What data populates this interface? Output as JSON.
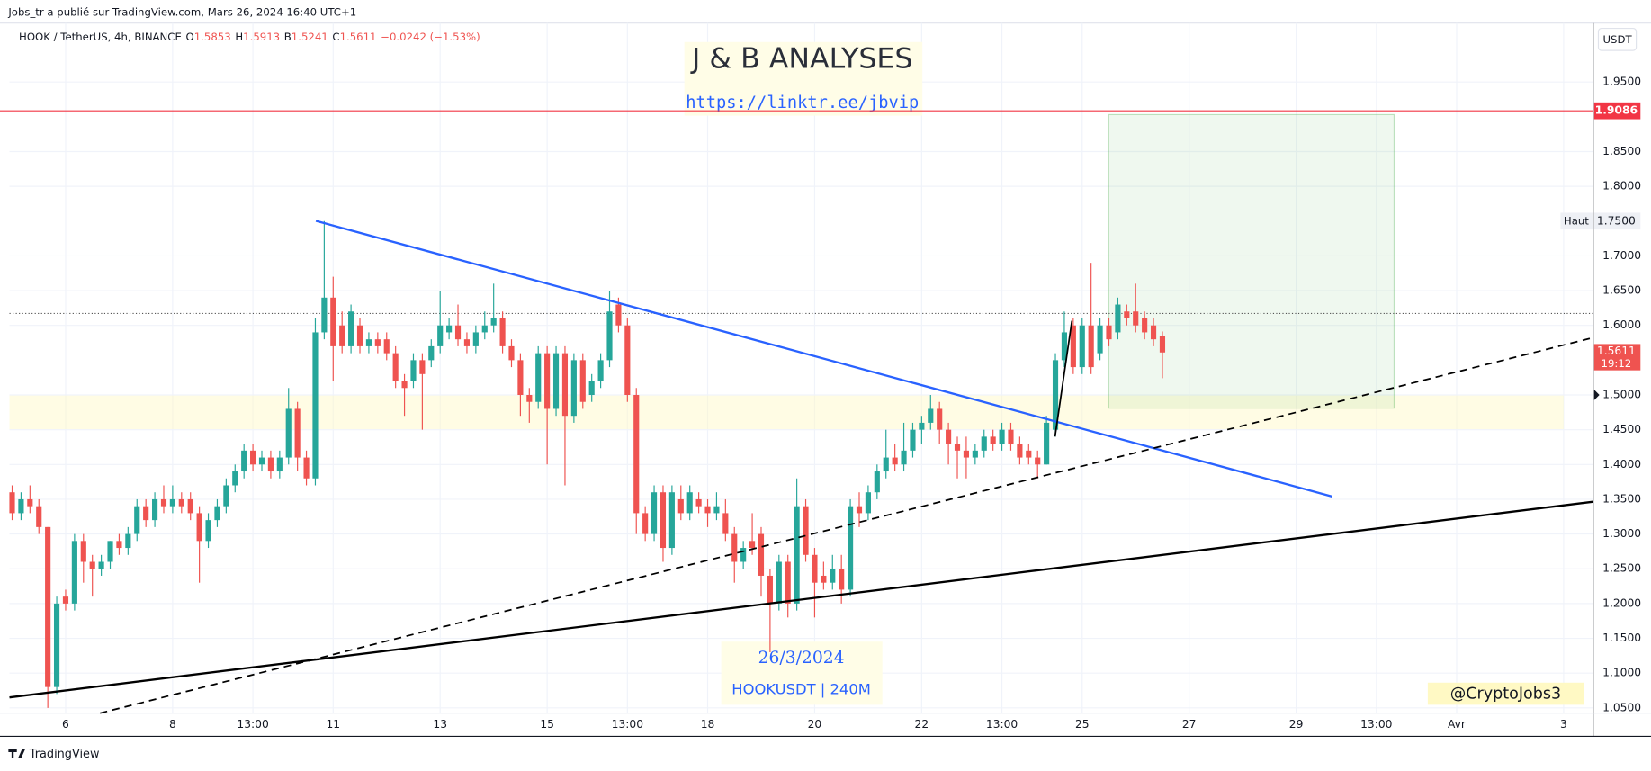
{
  "header": {
    "publisher": "Jobs_tr a publié sur TradingView.com, Mars 26, 2024 16:40 UTC+1"
  },
  "chart_data": {
    "type": "candlestick",
    "symbol": "HOOK / TetherUS, 4h, BINANCE",
    "legend_values": [
      {
        "key": "O",
        "value": 1.5853
      },
      {
        "key": "H",
        "value": 1.5913
      },
      {
        "key": "B",
        "value": 1.5241
      },
      {
        "key": "C",
        "value": 1.5611
      }
    ],
    "change": "−0.0242 (−1.53%)",
    "up_color": "#26a69a",
    "down_color": "#ef5350",
    "candles": [
      [
        1.36,
        1.37,
        1.32,
        1.33
      ],
      [
        1.33,
        1.36,
        1.32,
        1.35
      ],
      [
        1.35,
        1.37,
        1.33,
        1.34
      ],
      [
        1.34,
        1.35,
        1.3,
        1.31
      ],
      [
        1.31,
        1.31,
        1.05,
        1.08
      ],
      [
        1.08,
        1.21,
        1.07,
        1.2
      ],
      [
        1.21,
        1.22,
        1.19,
        1.2
      ],
      [
        1.2,
        1.3,
        1.19,
        1.29
      ],
      [
        1.29,
        1.3,
        1.23,
        1.26
      ],
      [
        1.26,
        1.27,
        1.21,
        1.25
      ],
      [
        1.25,
        1.27,
        1.24,
        1.26
      ],
      [
        1.26,
        1.29,
        1.25,
        1.29
      ],
      [
        1.29,
        1.3,
        1.27,
        1.28
      ],
      [
        1.28,
        1.31,
        1.27,
        1.3
      ],
      [
        1.3,
        1.35,
        1.29,
        1.34
      ],
      [
        1.34,
        1.35,
        1.31,
        1.32
      ],
      [
        1.32,
        1.36,
        1.31,
        1.35
      ],
      [
        1.35,
        1.37,
        1.33,
        1.34
      ],
      [
        1.34,
        1.37,
        1.33,
        1.35
      ],
      [
        1.35,
        1.36,
        1.33,
        1.34
      ],
      [
        1.35,
        1.36,
        1.32,
        1.33
      ],
      [
        1.33,
        1.34,
        1.23,
        1.29
      ],
      [
        1.29,
        1.33,
        1.28,
        1.32
      ],
      [
        1.32,
        1.35,
        1.31,
        1.34
      ],
      [
        1.34,
        1.38,
        1.33,
        1.37
      ],
      [
        1.37,
        1.4,
        1.36,
        1.39
      ],
      [
        1.39,
        1.43,
        1.38,
        1.42
      ],
      [
        1.42,
        1.43,
        1.39,
        1.4
      ],
      [
        1.4,
        1.42,
        1.39,
        1.41
      ],
      [
        1.41,
        1.42,
        1.38,
        1.39
      ],
      [
        1.39,
        1.42,
        1.38,
        1.41
      ],
      [
        1.41,
        1.51,
        1.4,
        1.48
      ],
      [
        1.48,
        1.49,
        1.39,
        1.41
      ],
      [
        1.41,
        1.42,
        1.37,
        1.38
      ],
      [
        1.38,
        1.61,
        1.37,
        1.59
      ],
      [
        1.59,
        1.75,
        1.58,
        1.64
      ],
      [
        1.64,
        1.67,
        1.52,
        1.57
      ],
      [
        1.6,
        1.62,
        1.56,
        1.57
      ],
      [
        1.57,
        1.63,
        1.56,
        1.62
      ],
      [
        1.6,
        1.61,
        1.56,
        1.57
      ],
      [
        1.57,
        1.59,
        1.56,
        1.58
      ],
      [
        1.58,
        1.59,
        1.56,
        1.57
      ],
      [
        1.58,
        1.59,
        1.55,
        1.56
      ],
      [
        1.56,
        1.57,
        1.51,
        1.52
      ],
      [
        1.52,
        1.53,
        1.47,
        1.51
      ],
      [
        1.52,
        1.56,
        1.51,
        1.55
      ],
      [
        1.55,
        1.56,
        1.45,
        1.53
      ],
      [
        1.55,
        1.58,
        1.54,
        1.57
      ],
      [
        1.57,
        1.65,
        1.56,
        1.6
      ],
      [
        1.59,
        1.61,
        1.58,
        1.6
      ],
      [
        1.6,
        1.63,
        1.57,
        1.58
      ],
      [
        1.58,
        1.59,
        1.56,
        1.57
      ],
      [
        1.57,
        1.6,
        1.56,
        1.59
      ],
      [
        1.59,
        1.62,
        1.58,
        1.6
      ],
      [
        1.6,
        1.66,
        1.59,
        1.61
      ],
      [
        1.61,
        1.62,
        1.56,
        1.57
      ],
      [
        1.57,
        1.58,
        1.54,
        1.55
      ],
      [
        1.55,
        1.56,
        1.47,
        1.5
      ],
      [
        1.5,
        1.51,
        1.46,
        1.49
      ],
      [
        1.49,
        1.57,
        1.48,
        1.56
      ],
      [
        1.56,
        1.57,
        1.4,
        1.48
      ],
      [
        1.48,
        1.57,
        1.47,
        1.56
      ],
      [
        1.56,
        1.57,
        1.37,
        1.47
      ],
      [
        1.47,
        1.56,
        1.46,
        1.55
      ],
      [
        1.55,
        1.56,
        1.48,
        1.49
      ],
      [
        1.5,
        1.53,
        1.49,
        1.52
      ],
      [
        1.52,
        1.56,
        1.51,
        1.55
      ],
      [
        1.55,
        1.65,
        1.54,
        1.62
      ],
      [
        1.63,
        1.64,
        1.59,
        1.6
      ],
      [
        1.6,
        1.61,
        1.49,
        1.5
      ],
      [
        1.5,
        1.51,
        1.3,
        1.33
      ],
      [
        1.33,
        1.34,
        1.29,
        1.3
      ],
      [
        1.3,
        1.37,
        1.29,
        1.36
      ],
      [
        1.36,
        1.37,
        1.26,
        1.28
      ],
      [
        1.28,
        1.37,
        1.27,
        1.36
      ],
      [
        1.35,
        1.37,
        1.32,
        1.33
      ],
      [
        1.33,
        1.37,
        1.32,
        1.36
      ],
      [
        1.35,
        1.36,
        1.33,
        1.34
      ],
      [
        1.34,
        1.35,
        1.31,
        1.33
      ],
      [
        1.33,
        1.36,
        1.32,
        1.34
      ],
      [
        1.33,
        1.35,
        1.29,
        1.3
      ],
      [
        1.3,
        1.31,
        1.23,
        1.26
      ],
      [
        1.26,
        1.29,
        1.25,
        1.28
      ],
      [
        1.29,
        1.33,
        1.27,
        1.28
      ],
      [
        1.3,
        1.31,
        1.21,
        1.24
      ],
      [
        1.24,
        1.25,
        1.13,
        1.2
      ],
      [
        1.2,
        1.27,
        1.19,
        1.26
      ],
      [
        1.26,
        1.27,
        1.18,
        1.2
      ],
      [
        1.2,
        1.38,
        1.19,
        1.34
      ],
      [
        1.34,
        1.35,
        1.26,
        1.27
      ],
      [
        1.27,
        1.28,
        1.18,
        1.23
      ],
      [
        1.24,
        1.26,
        1.22,
        1.23
      ],
      [
        1.23,
        1.27,
        1.22,
        1.25
      ],
      [
        1.25,
        1.27,
        1.2,
        1.22
      ],
      [
        1.22,
        1.35,
        1.21,
        1.34
      ],
      [
        1.34,
        1.36,
        1.31,
        1.33
      ],
      [
        1.33,
        1.37,
        1.32,
        1.36
      ],
      [
        1.36,
        1.4,
        1.35,
        1.39
      ],
      [
        1.39,
        1.45,
        1.38,
        1.41
      ],
      [
        1.41,
        1.43,
        1.39,
        1.4
      ],
      [
        1.4,
        1.46,
        1.39,
        1.42
      ],
      [
        1.42,
        1.46,
        1.41,
        1.45
      ],
      [
        1.45,
        1.47,
        1.43,
        1.46
      ],
      [
        1.46,
        1.5,
        1.45,
        1.48
      ],
      [
        1.48,
        1.49,
        1.43,
        1.45
      ],
      [
        1.45,
        1.46,
        1.4,
        1.43
      ],
      [
        1.43,
        1.44,
        1.38,
        1.42
      ],
      [
        1.42,
        1.44,
        1.38,
        1.41
      ],
      [
        1.41,
        1.43,
        1.4,
        1.42
      ],
      [
        1.42,
        1.45,
        1.41,
        1.44
      ],
      [
        1.44,
        1.45,
        1.42,
        1.43
      ],
      [
        1.43,
        1.46,
        1.42,
        1.45
      ],
      [
        1.45,
        1.46,
        1.42,
        1.43
      ],
      [
        1.43,
        1.44,
        1.4,
        1.41
      ],
      [
        1.42,
        1.43,
        1.4,
        1.41
      ],
      [
        1.41,
        1.42,
        1.38,
        1.4
      ],
      [
        1.4,
        1.47,
        1.4,
        1.46
      ],
      [
        1.45,
        1.56,
        1.44,
        1.55
      ],
      [
        1.55,
        1.62,
        1.54,
        1.59
      ],
      [
        1.6,
        1.61,
        1.53,
        1.54
      ],
      [
        1.54,
        1.61,
        1.53,
        1.6
      ],
      [
        1.6,
        1.69,
        1.53,
        1.54
      ],
      [
        1.56,
        1.61,
        1.55,
        1.6
      ],
      [
        1.6,
        1.61,
        1.57,
        1.58
      ],
      [
        1.59,
        1.64,
        1.58,
        1.63
      ],
      [
        1.62,
        1.63,
        1.6,
        1.61
      ],
      [
        1.62,
        1.66,
        1.59,
        1.6
      ],
      [
        1.61,
        1.62,
        1.58,
        1.59
      ],
      [
        1.6,
        1.61,
        1.57,
        1.58
      ],
      [
        1.5853,
        1.5913,
        1.5241,
        1.5611
      ]
    ],
    "xlim": [
      -0.3,
      177.3
    ],
    "xticks": [
      {
        "value": 6,
        "label": "6"
      },
      {
        "value": 18,
        "label": "8"
      },
      {
        "value": 27,
        "label": "13:00"
      },
      {
        "value": 36,
        "label": "11"
      },
      {
        "value": 48,
        "label": "13"
      },
      {
        "value": 60,
        "label": "15"
      },
      {
        "value": 69,
        "label": "13:00"
      },
      {
        "value": 78,
        "label": "18"
      },
      {
        "value": 90,
        "label": "20"
      },
      {
        "value": 102,
        "label": "22"
      },
      {
        "value": 111,
        "label": "13:00"
      },
      {
        "value": 120,
        "label": "25"
      },
      {
        "value": 132,
        "label": "27"
      },
      {
        "value": 144,
        "label": "29"
      },
      {
        "value": 153,
        "label": "13:00"
      },
      {
        "value": 162,
        "label": "Avr"
      },
      {
        "value": 174,
        "label": "3"
      }
    ],
    "ylim": [
      1.0424,
      2.0347
    ],
    "yticks": [
      {
        "value": 1.05,
        "label": "1.0500"
      },
      {
        "value": 1.1,
        "label": "1.1000"
      },
      {
        "value": 1.15,
        "label": "1.1500"
      },
      {
        "value": 1.2,
        "label": "1.2000"
      },
      {
        "value": 1.25,
        "label": "1.2500"
      },
      {
        "value": 1.3,
        "label": "1.3000"
      },
      {
        "value": 1.35,
        "label": "1.3500"
      },
      {
        "value": 1.4,
        "label": "1.4000"
      },
      {
        "value": 1.45,
        "label": "1.4500"
      },
      {
        "value": 1.5,
        "label": "1.5000"
      },
      {
        "value": 1.6,
        "label": "1.6000"
      },
      {
        "value": 1.65,
        "label": "1.6500"
      },
      {
        "value": 1.7,
        "label": "1.7000"
      },
      {
        "value": 1.8,
        "label": "1.8000"
      },
      {
        "value": 1.85,
        "label": "1.8500"
      },
      {
        "value": 1.95,
        "label": "1.9500"
      }
    ],
    "grid": true,
    "axis_unit": "USDT",
    "horizontal_line": {
      "value": 1.9086,
      "color": "#f23645"
    },
    "high_marker": {
      "label": "Haut",
      "value": {
        "value": 1.75,
        "label": "1.7500"
      }
    },
    "last_price": {
      "value": 1.5611,
      "countdown": "19:12"
    },
    "watermarks": {
      "title": "J & B ANALYSES",
      "link": "https://linktr.ee/jbvip",
      "date": "26/3/2024",
      "ticker": "HOOKUSDT | 240M",
      "handle": "@CryptoJobs3"
    }
  },
  "footer": {
    "brand": "TradingView"
  }
}
